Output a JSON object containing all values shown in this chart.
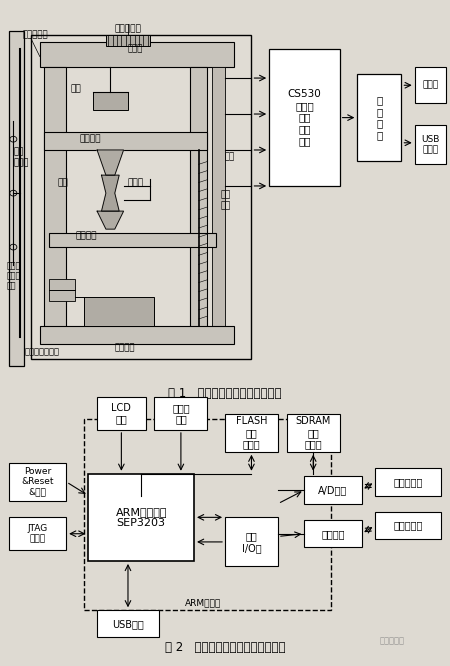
{
  "bg_color": "#e8e4dc",
  "fig1_caption": "图 1   电子万能试验机工作原理图",
  "fig2_caption": "图 2   电子万能试验机硬件体系结构",
  "watermark": "电子发烧友",
  "font": "DejaVu Sans"
}
